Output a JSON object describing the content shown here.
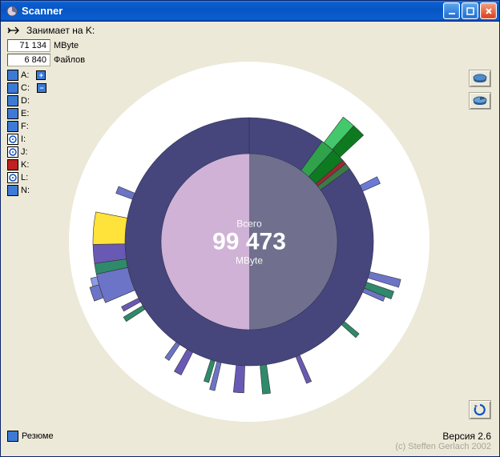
{
  "window": {
    "title": "Scanner",
    "icon": "pie-icon"
  },
  "header": {
    "label": "Занимает на K:"
  },
  "stats": {
    "size_value": "71 134",
    "size_unit": "MByte",
    "files_value": "6 840",
    "files_unit": "Файлов"
  },
  "drives": [
    {
      "letter": "A:",
      "type": "hd",
      "selected": false,
      "has_plus": true
    },
    {
      "letter": "C:",
      "type": "hd",
      "selected": false,
      "has_minus": true
    },
    {
      "letter": "D:",
      "type": "hd",
      "selected": false
    },
    {
      "letter": "E:",
      "type": "hd",
      "selected": false
    },
    {
      "letter": "F:",
      "type": "hd",
      "selected": false
    },
    {
      "letter": "I:",
      "type": "cd",
      "selected": false
    },
    {
      "letter": "J:",
      "type": "cd",
      "selected": false
    },
    {
      "letter": "K:",
      "type": "hd",
      "selected": true
    },
    {
      "letter": "L:",
      "type": "cd",
      "selected": false
    },
    {
      "letter": "N:",
      "type": "hd",
      "selected": false
    }
  ],
  "resume_label": "Резюме",
  "version": "Версия 2.6",
  "copyright": "(c) Steffen Gerlach 2002",
  "chart": {
    "center": {
      "label_top": "Всего",
      "value": "99 473",
      "label_bottom": "MByte"
    },
    "background_color": "#ffffff",
    "inner_half_color": "#cfb2d5",
    "core_color": "#70708e",
    "center_sep_angle": 180,
    "ring1": [
      {
        "start": 0,
        "end": 36,
        "color": "#46467d"
      },
      {
        "start": 36,
        "end": 42.5,
        "color": "#2fa24a"
      },
      {
        "start": 42.5,
        "end": 49,
        "color": "#0e7a20"
      },
      {
        "start": 49,
        "end": 51,
        "color": "#9c2a2a"
      },
      {
        "start": 51,
        "end": 54,
        "color": "#3d7a45"
      },
      {
        "start": 54,
        "end": 360,
        "color": "#46467d"
      }
    ],
    "ring2": [
      {
        "start": 37,
        "end": 42,
        "color": "#43c96b",
        "len": 1.0
      },
      {
        "start": 42,
        "end": 47,
        "color": "#0e7a20",
        "len": 1.0
      },
      {
        "start": 63,
        "end": 66,
        "color": "#6a7ad6",
        "len": 0.6
      },
      {
        "start": 104,
        "end": 107,
        "color": "#6c74c7",
        "len": 1.0
      },
      {
        "start": 109,
        "end": 112,
        "color": "#2f8a6b",
        "len": 0.9
      },
      {
        "start": 112,
        "end": 114,
        "color": "#6c74c7",
        "len": 0.7
      },
      {
        "start": 130,
        "end": 132,
        "color": "#2f8a6b",
        "len": 0.6
      },
      {
        "start": 156,
        "end": 158,
        "color": "#6a59b4",
        "len": 0.9
      },
      {
        "start": 172,
        "end": 175,
        "color": "#2f8a6b",
        "len": 0.9
      },
      {
        "start": 182,
        "end": 186,
        "color": "#6a59b4",
        "len": 0.85
      },
      {
        "start": 193,
        "end": 195,
        "color": "#6c74c7",
        "len": 0.9
      },
      {
        "start": 196,
        "end": 198,
        "color": "#2f8a6b",
        "len": 0.7
      },
      {
        "start": 207,
        "end": 210,
        "color": "#6a59b4",
        "len": 0.8
      },
      {
        "start": 214,
        "end": 216,
        "color": "#6c74c7",
        "len": 0.6
      },
      {
        "start": 237,
        "end": 239,
        "color": "#2f8a6b",
        "len": 0.7
      },
      {
        "start": 241,
        "end": 243,
        "color": "#6a59b4",
        "len": 0.6
      },
      {
        "start": 247,
        "end": 258,
        "color": "#6c74c7",
        "len": 1.0
      },
      {
        "start": 258,
        "end": 262,
        "color": "#2f8a6b",
        "len": 1.0
      },
      {
        "start": 262,
        "end": 269,
        "color": "#6a59b4",
        "len": 1.0
      },
      {
        "start": 269,
        "end": 281,
        "color": "#ffe23a",
        "len": 1.0
      },
      {
        "start": 290,
        "end": 293,
        "color": "#6c74c7",
        "len": 0.55
      }
    ],
    "ring3": [
      {
        "start": 249,
        "end": 254,
        "color": "#6c74c7",
        "len": 0.6
      },
      {
        "start": 254,
        "end": 257,
        "color": "#8c9be6",
        "len": 0.4
      }
    ]
  }
}
